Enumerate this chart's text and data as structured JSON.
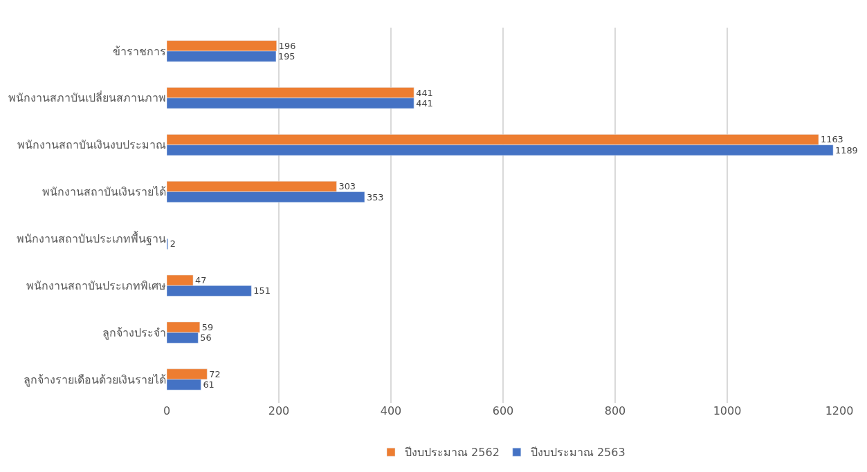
{
  "chart_data": {
    "type": "bar",
    "orientation": "horizontal",
    "categories": [
      "ข้าราชการ",
      "พนักงานสภาบันเปลี่ยนสภานภาพ",
      "พนักงานสถาบันเงินงบประมาณ",
      "พนักงานสถาบันเงินรายได้",
      "พนักงานสถาบันประเภทพื้นฐาน",
      "พนักงานสถาบันประเภทพิเศษ",
      "ลูกจ้างประจำ",
      "ลูกจ้างรายเดือนด้วยเงินรายได้"
    ],
    "series": [
      {
        "name": "ปีงบประมาณ 2562",
        "color": "#ed7d31",
        "values": [
          196,
          441,
          1163,
          303,
          null,
          47,
          59,
          72
        ]
      },
      {
        "name": "ปีงบประมาณ 2563",
        "color": "#4472c4",
        "values": [
          195,
          441,
          1189,
          353,
          2,
          151,
          56,
          61
        ]
      }
    ],
    "xlim": [
      0,
      1200
    ],
    "xticks": [
      0,
      200,
      400,
      600,
      800,
      1000,
      1200
    ],
    "grid": "x",
    "legend": "bottom",
    "data_labels": true
  }
}
